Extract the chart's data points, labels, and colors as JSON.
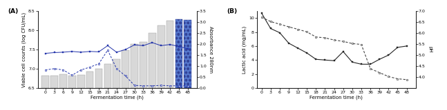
{
  "panel_A": {
    "time": [
      0,
      3,
      6,
      9,
      12,
      15,
      18,
      21,
      24,
      27,
      30,
      33,
      36,
      39,
      42,
      45,
      48
    ],
    "bar_values": [
      6.82,
      6.83,
      6.85,
      6.82,
      6.84,
      6.92,
      7.0,
      7.12,
      7.25,
      7.48,
      7.65,
      7.7,
      7.92,
      8.12,
      8.25,
      8.28,
      8.26
    ],
    "line1_values": [
      7.4,
      7.42,
      7.43,
      7.45,
      7.43,
      7.45,
      7.44,
      7.6,
      7.43,
      7.5,
      7.62,
      7.6,
      7.68,
      7.6,
      7.63,
      7.58,
      7.52
    ],
    "line2_values": [
      0.82,
      0.88,
      0.82,
      0.58,
      0.82,
      0.95,
      1.1,
      1.72,
      0.88,
      0.55,
      0.12,
      0.1,
      0.1,
      0.12,
      0.1,
      0.1,
      0.1
    ],
    "bar_colors_hatched_indices": [
      15,
      16
    ],
    "ylabel_left": "Viable cell counts (log CFU/mL)",
    "ylabel_right": "Absorbance 280nm",
    "xlabel": "Fermentation time (h)",
    "ylim_left": [
      6.5,
      8.5
    ],
    "ylim_right": [
      0.0,
      3.5
    ],
    "yticks_left": [
      6.5,
      7.0,
      7.5,
      8.0,
      8.5
    ],
    "yticks_right": [
      0.0,
      0.5,
      1.0,
      1.5,
      2.0,
      2.5,
      3.0,
      3.5
    ],
    "line1_color": "#2233aa",
    "line2_color": "#2233aa",
    "bar_plain_color": "#d8d8d8",
    "bar_hatch_color": "#5577cc",
    "bar_hatch_edgecolor": "#334499",
    "line1_style": "-",
    "line2_style": "--",
    "marker": "s",
    "label": "(A)"
  },
  "panel_B": {
    "time": [
      0,
      3,
      6,
      9,
      12,
      15,
      18,
      21,
      24,
      27,
      30,
      33,
      36,
      39,
      42,
      45,
      48
    ],
    "lactic_acid": [
      10.7,
      8.5,
      7.9,
      6.4,
      5.7,
      5.0,
      4.1,
      4.0,
      3.9,
      5.2,
      3.7,
      3.4,
      3.4,
      4.1,
      4.7,
      5.8,
      6.0
    ],
    "ph": [
      6.72,
      6.52,
      6.4,
      6.28,
      6.17,
      6.05,
      5.82,
      5.78,
      5.68,
      5.62,
      5.52,
      5.48,
      4.38,
      4.2,
      4.02,
      3.92,
      3.88
    ],
    "ylabel_left": "Lactic acid (mg/mL)",
    "ylabel_right": "pH",
    "xlabel": "Fermentation time (h)",
    "ylim_left": [
      0,
      11
    ],
    "ylim_right": [
      3.5,
      7.0
    ],
    "yticks_left": [
      0,
      2,
      4,
      6,
      8,
      10
    ],
    "yticks_right": [
      4.0,
      4.5,
      5.0,
      5.5,
      6.0,
      6.5,
      7.0
    ],
    "line_lactic_color": "#222222",
    "line_ph_color": "#444444",
    "line_lactic_style": "-",
    "line_ph_style": "--",
    "marker": "s",
    "label": "(B)"
  },
  "figure_bg": "#ffffff",
  "font_size": 5.0,
  "tick_font_size": 4.5,
  "label_font_size": 6.5
}
